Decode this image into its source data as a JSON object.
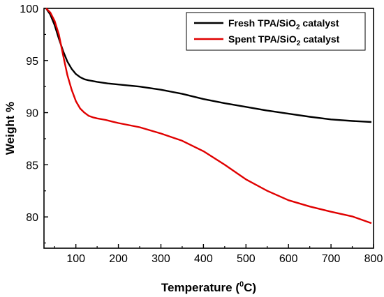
{
  "chart_data": {
    "type": "line",
    "xlabel_main": "Temperature (",
    "xlabel_sup": "0",
    "xlabel_end": "C)",
    "ylabel": "Weight %",
    "xlim": [
      25,
      800
    ],
    "ylim": [
      77,
      100
    ],
    "xticks": [
      100,
      200,
      300,
      400,
      500,
      600,
      700,
      800
    ],
    "yticks": [
      80,
      85,
      90,
      95,
      100
    ],
    "grid": false,
    "legend_position": "top-right",
    "series": [
      {
        "name_main": "Fresh TPA/SiO",
        "name_sub": "2",
        "name_end": " catalyst",
        "color": "#000000",
        "x": [
          30,
          40,
          50,
          60,
          70,
          80,
          90,
          100,
          110,
          120,
          130,
          150,
          175,
          200,
          250,
          300,
          350,
          400,
          450,
          500,
          550,
          600,
          650,
          700,
          750,
          795
        ],
        "y": [
          100,
          99.4,
          98.4,
          97.1,
          95.9,
          94.9,
          94.2,
          93.7,
          93.4,
          93.2,
          93.1,
          92.95,
          92.8,
          92.7,
          92.5,
          92.2,
          91.8,
          91.3,
          90.9,
          90.55,
          90.2,
          89.9,
          89.6,
          89.35,
          89.2,
          89.1
        ]
      },
      {
        "name_main": "Spent TPA/SiO",
        "name_sub": "2",
        "name_end": " catalyst",
        "color": "#e00000",
        "x": [
          30,
          40,
          50,
          60,
          70,
          80,
          90,
          100,
          110,
          120,
          130,
          140,
          150,
          170,
          185,
          200,
          250,
          300,
          350,
          400,
          450,
          500,
          550,
          600,
          650,
          700,
          750,
          795
        ],
        "y": [
          100,
          99.6,
          98.8,
          97.5,
          95.5,
          93.6,
          92.2,
          91.1,
          90.4,
          90.0,
          89.7,
          89.55,
          89.45,
          89.3,
          89.15,
          89.0,
          88.6,
          88.0,
          87.3,
          86.3,
          85.0,
          83.6,
          82.5,
          81.6,
          81.0,
          80.5,
          80.05,
          79.4
        ]
      }
    ]
  }
}
